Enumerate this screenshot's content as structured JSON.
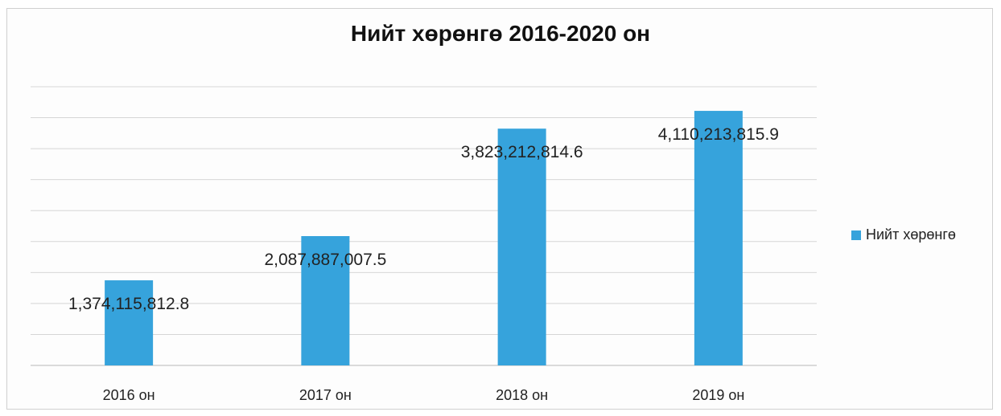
{
  "chart_data": {
    "type": "bar",
    "title": "Нийт хөрөнгө 2016-2020 он",
    "categories": [
      "2016 он",
      "2017 он",
      "2018 он",
      "2019 он"
    ],
    "series": [
      {
        "name": "Нийт хөрөнгө",
        "values": [
          1374115812.8,
          2087887007.5,
          3823212814.6,
          4110213815.9
        ],
        "labels": [
          "1,374,115,812.8",
          "2,087,887,007.5",
          "3,823,212,814.6",
          "4,110,213,815.9"
        ],
        "color": "#36a3dc"
      }
    ],
    "ylim": [
      0,
      4500000000
    ],
    "grid": true,
    "legend": "right"
  }
}
